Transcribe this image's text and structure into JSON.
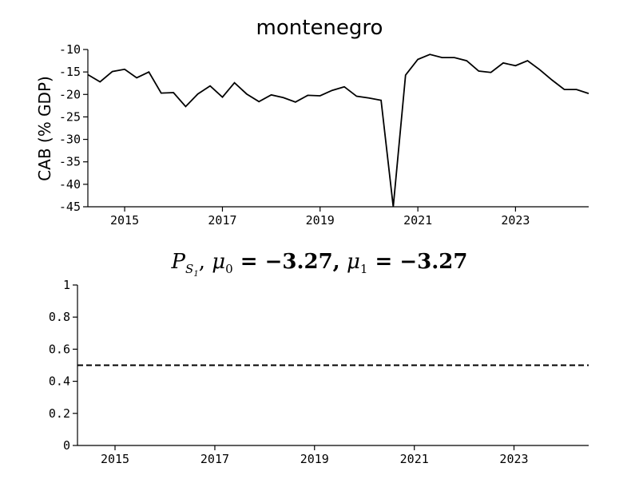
{
  "chart_data": [
    {
      "type": "line",
      "title": "montenegro",
      "xlabel": "",
      "ylabel": "CAB (% GDP)",
      "xlim": [
        "2014-04-01",
        "2024-07-01"
      ],
      "ylim": [
        -45,
        -10
      ],
      "yticks": [
        -10,
        -15,
        -20,
        -25,
        -30,
        -35,
        -40,
        -45
      ],
      "xticks": [
        "2015",
        "2017",
        "2019",
        "2021",
        "2023"
      ],
      "grid": false,
      "series": [
        {
          "color": "#000000",
          "x": [
            "2014-04-01",
            "2014-07-01",
            "2014-10-01",
            "2015-01-01",
            "2015-04-01",
            "2015-07-01",
            "2015-10-01",
            "2016-01-01",
            "2016-04-01",
            "2016-07-01",
            "2016-10-01",
            "2017-01-01",
            "2017-04-01",
            "2017-07-01",
            "2017-10-01",
            "2018-01-01",
            "2018-04-01",
            "2018-07-01",
            "2018-10-01",
            "2019-01-01",
            "2019-04-01",
            "2019-07-01",
            "2019-10-01",
            "2020-01-01",
            "2020-04-01",
            "2020-07-01",
            "2020-10-01",
            "2021-01-01",
            "2021-04-01",
            "2021-07-01",
            "2021-10-01",
            "2022-01-01",
            "2022-04-01",
            "2022-07-01",
            "2022-10-01",
            "2023-01-01",
            "2023-04-01",
            "2023-07-01",
            "2023-10-01",
            "2024-01-01",
            "2024-04-01",
            "2024-07-01"
          ],
          "values": [
            -15.6,
            -17.2,
            -14.9,
            -14.4,
            -16.3,
            -15.0,
            -19.7,
            -19.6,
            -22.7,
            -19.9,
            -18.1,
            -20.6,
            -17.4,
            -19.9,
            -21.6,
            -20.1,
            -20.7,
            -21.7,
            -20.2,
            -20.3,
            -19.1,
            -18.3,
            -20.4,
            -20.8,
            -21.3,
            -45.0,
            -15.7,
            -12.2,
            -11.1,
            -11.8,
            -11.8,
            -12.5,
            -14.8,
            -15.1,
            -13.0,
            -13.6,
            -12.5,
            -14.5,
            -16.8,
            -18.9,
            -18.9,
            -19.8
          ]
        }
      ]
    },
    {
      "type": "line",
      "title": "P_{S_1}, μ0 = −3.27, μ1 = −3.27",
      "title_parts": {
        "p": "P",
        "s": "S",
        "s1": "1",
        "mu": "μ",
        "m0": "0",
        "m1": "1",
        "val0": "= −3.27,",
        "val1": "= −3.27"
      },
      "xlabel": "",
      "ylabel": "",
      "xlim": [
        "2014-04-01",
        "2024-07-01"
      ],
      "ylim": [
        0,
        1
      ],
      "yticks": [
        "0",
        "0.2",
        "0.4",
        "0.6",
        "0.8",
        "1"
      ],
      "xticks": [
        "2015",
        "2017",
        "2019",
        "2021",
        "2023"
      ],
      "grid": false,
      "series": [
        {
          "color": "#000000",
          "linestyle": "dashed",
          "x": [
            "2014-04-01",
            "2024-07-01"
          ],
          "values": [
            0.5,
            0.5
          ]
        }
      ]
    }
  ]
}
